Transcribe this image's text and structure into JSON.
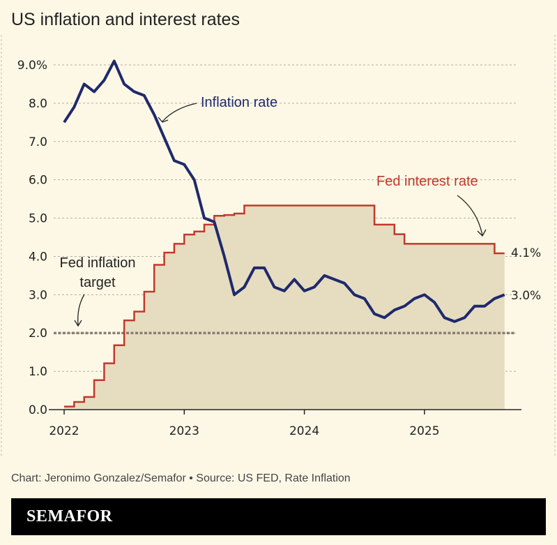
{
  "title": "US inflation and interest rates",
  "credit": "Chart: Jeronimo Gonzalez/Semafor • Source: US FED, Rate Inflation",
  "brand": "SEMAFOR",
  "colors": {
    "inflation": "#1f2a6b",
    "fed_rate": "#c0392b",
    "fill": "#e6dcc0",
    "target": "#8a7e72",
    "background": "#fdf8e6"
  },
  "chart_data": {
    "type": "line",
    "title": "US inflation and interest rates",
    "x_start": "2022-01",
    "x_end": "2025-09",
    "x_frequency": "monthly",
    "xticks": [
      "2022",
      "2023",
      "2024",
      "2025"
    ],
    "yticks": [
      "0.0",
      "1.0",
      "2.0",
      "3.0",
      "4.0",
      "5.0",
      "6.0",
      "7.0",
      "8.0",
      "9.0%"
    ],
    "ylim": [
      0,
      9
    ],
    "grid": true,
    "series": [
      {
        "name": "Inflation rate",
        "style": "line",
        "end_label": "3.0%",
        "values": [
          7.5,
          7.9,
          8.5,
          8.3,
          8.6,
          9.1,
          8.5,
          8.3,
          8.2,
          7.7,
          7.1,
          6.5,
          6.4,
          6.0,
          5.0,
          4.9,
          4.0,
          3.0,
          3.2,
          3.7,
          3.7,
          3.2,
          3.1,
          3.4,
          3.1,
          3.2,
          3.5,
          3.4,
          3.3,
          3.0,
          2.9,
          2.5,
          2.4,
          2.6,
          2.7,
          2.9,
          3.0,
          2.8,
          2.4,
          2.3,
          2.4,
          2.7,
          2.7,
          2.9,
          3.0
        ]
      },
      {
        "name": "Fed interest rate",
        "style": "step-area",
        "end_label": "4.1%",
        "values": [
          0.08,
          0.2,
          0.33,
          0.77,
          1.21,
          1.68,
          2.33,
          2.56,
          3.08,
          3.78,
          4.1,
          4.33,
          4.57,
          4.65,
          4.83,
          5.06,
          5.08,
          5.12,
          5.33,
          5.33,
          5.33,
          5.33,
          5.33,
          5.33,
          5.33,
          5.33,
          5.33,
          5.33,
          5.33,
          5.33,
          5.33,
          4.83,
          4.83,
          4.58,
          4.33,
          4.33,
          4.33,
          4.33,
          4.33,
          4.33,
          4.33,
          4.33,
          4.33,
          4.08,
          4.08
        ]
      }
    ],
    "annotations": [
      {
        "text": "Fed inflation target",
        "lines": [
          "Fed inflation",
          "target"
        ],
        "value": 2.0
      }
    ]
  }
}
